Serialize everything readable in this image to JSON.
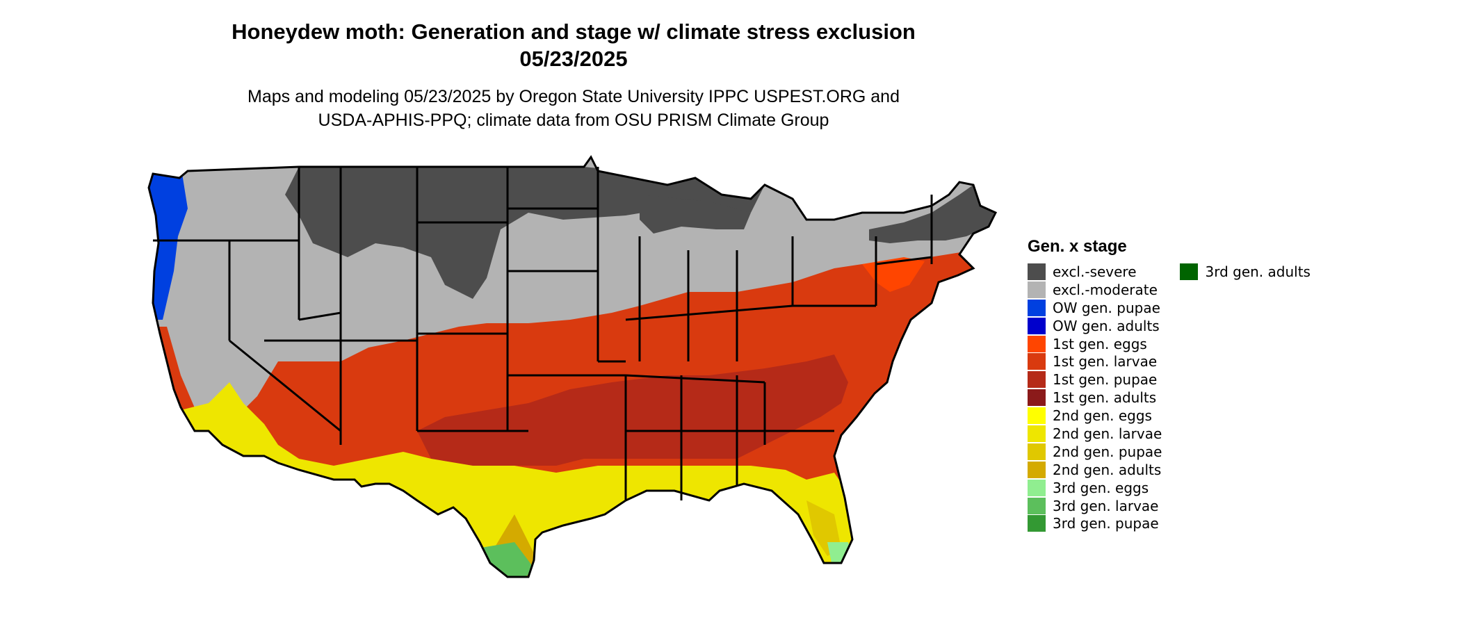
{
  "title_line1": "Honeydew moth: Generation and stage w/ climate stress exclusion",
  "title_line2": "05/23/2025",
  "subtitle_line1": "Maps and modeling 05/23/2025 by Oregon State University IPPC USPEST.ORG and",
  "subtitle_line2": "USDA-APHIS-PPQ; climate data from OSU PRISM Climate Group",
  "legend": {
    "title": "Gen. x stage",
    "items": [
      {
        "label": "excl.-severe",
        "color": "#4d4d4d"
      },
      {
        "label": "excl.-moderate",
        "color": "#b3b3b3"
      },
      {
        "label": "OW gen. pupae",
        "color": "#0040e0"
      },
      {
        "label": "OW gen. adults",
        "color": "#0000cc"
      },
      {
        "label": "1st gen. eggs",
        "color": "#ff4500"
      },
      {
        "label": "1st gen. larvae",
        "color": "#d93a0f"
      },
      {
        "label": "1st gen. pupae",
        "color": "#b52a18"
      },
      {
        "label": "1st gen. adults",
        "color": "#8b1a1a"
      },
      {
        "label": "2nd gen. eggs",
        "color": "#ffff00"
      },
      {
        "label": "2nd gen. larvae",
        "color": "#eee600"
      },
      {
        "label": "2nd gen. pupae",
        "color": "#e0c800"
      },
      {
        "label": "2nd gen. adults",
        "color": "#d4aa00"
      },
      {
        "label": "3rd gen. eggs",
        "color": "#90ee90"
      },
      {
        "label": "3rd gen. larvae",
        "color": "#5cbf5c"
      },
      {
        "label": "3rd gen. pupae",
        "color": "#339933"
      },
      {
        "label": "3rd gen. adults",
        "color": "#006400"
      }
    ]
  }
}
